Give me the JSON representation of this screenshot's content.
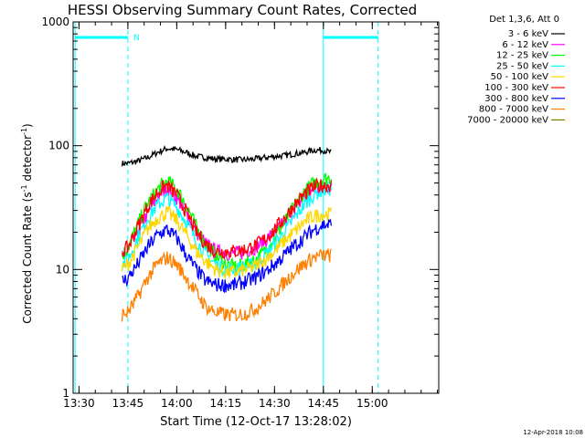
{
  "chart_data": {
    "type": "line",
    "title": "HESSI Observing Summary Count Rates, Corrected",
    "xlabel": "Start Time (12-Oct-17 13:28:02)",
    "ylabel_main": "Corrected Count Rate (s",
    "ylabel_sup1": "-1",
    "ylabel_mid": " detector",
    "ylabel_sup2": "-1",
    "ylabel_end": ")",
    "yscale": "log",
    "ylim": [
      1,
      1000
    ],
    "xlim_minutes": [
      13.47,
      15.34
    ],
    "x_unit": "time of day (hours, decimal)",
    "xtick_labels": [
      "13:30",
      "13:45",
      "14:00",
      "14:15",
      "14:30",
      "14:45",
      "15:00"
    ],
    "xtick_values": [
      13.5,
      13.75,
      14.0,
      14.25,
      14.5,
      14.75,
      15.0
    ],
    "ytick_labels": [
      "1",
      "10",
      "100",
      "1000"
    ],
    "ytick_values": [
      1,
      10,
      100,
      1000
    ],
    "legend_header": "Det 1,3,6, Att 0",
    "legend_location": "right of plot, top",
    "series": [
      {
        "name": "3 - 6 keV",
        "color": "#000000",
        "x": [
          13.72,
          13.75,
          13.8,
          13.85,
          13.9,
          13.95,
          14.0,
          14.05,
          14.1,
          14.15,
          14.2,
          14.25,
          14.3,
          14.35,
          14.4,
          14.45,
          14.5,
          14.55,
          14.6,
          14.65,
          14.7,
          14.75,
          14.79
        ],
        "y": [
          72,
          72,
          75,
          80,
          88,
          95,
          93,
          88,
          82,
          80,
          78,
          78,
          77,
          77,
          78,
          80,
          82,
          83,
          86,
          88,
          92,
          92,
          88
        ]
      },
      {
        "name": "6 - 12 keV",
        "color": "#ff00ff",
        "x": [
          13.72,
          13.75,
          13.8,
          13.85,
          13.9,
          13.95,
          14.0,
          14.05,
          14.1,
          14.15,
          14.2,
          14.25,
          14.3,
          14.35,
          14.4,
          14.45,
          14.5,
          14.55,
          14.6,
          14.65,
          14.7,
          14.75,
          14.79
        ],
        "y": [
          13,
          14,
          20,
          28,
          38,
          46,
          38,
          28,
          20,
          16,
          14,
          13.5,
          13.5,
          14,
          15,
          17,
          20,
          24,
          30,
          38,
          44,
          47,
          48
        ]
      },
      {
        "name": "12 - 25 keV",
        "color": "#00ff00",
        "x": [
          13.72,
          13.75,
          13.8,
          13.85,
          13.9,
          13.95,
          14.0,
          14.05,
          14.1,
          14.15,
          14.2,
          14.25,
          14.3,
          14.35,
          14.4,
          14.45,
          14.5,
          14.55,
          14.6,
          14.65,
          14.7,
          14.75,
          14.79
        ],
        "y": [
          13,
          15,
          23,
          34,
          44,
          52,
          45,
          33,
          22,
          16,
          13,
          11,
          10.5,
          11,
          12,
          14,
          18,
          24,
          32,
          42,
          50,
          54,
          55
        ]
      },
      {
        "name": "25 - 50 keV",
        "color": "#00ffff",
        "x": [
          13.72,
          13.75,
          13.8,
          13.85,
          13.9,
          13.95,
          14.0,
          14.05,
          14.1,
          14.15,
          14.2,
          14.25,
          14.3,
          14.35,
          14.4,
          14.45,
          14.5,
          14.55,
          14.6,
          14.65,
          14.7,
          14.75,
          14.79
        ],
        "y": [
          11,
          12,
          18,
          26,
          33,
          38,
          32,
          24,
          17,
          13,
          11,
          10,
          10,
          10.5,
          11,
          13,
          16,
          20,
          26,
          33,
          40,
          44,
          45
        ]
      },
      {
        "name": "50 - 100 keV",
        "color": "#ffd700",
        "x": [
          13.72,
          13.75,
          13.8,
          13.85,
          13.9,
          13.95,
          14.0,
          14.05,
          14.1,
          14.15,
          14.2,
          14.25,
          14.3,
          14.35,
          14.4,
          14.45,
          14.5,
          14.55,
          14.6,
          14.65,
          14.7,
          14.75,
          14.79
        ],
        "y": [
          10,
          11,
          15,
          21,
          26,
          29,
          25,
          19,
          14,
          11.5,
          10,
          9.5,
          9.5,
          10,
          10.5,
          12,
          14,
          17,
          20,
          24,
          27,
          28,
          28
        ]
      },
      {
        "name": "100 - 300 keV",
        "color": "#ff0000",
        "x": [
          13.72,
          13.75,
          13.8,
          13.85,
          13.9,
          13.95,
          14.0,
          14.05,
          14.1,
          14.15,
          14.2,
          14.25,
          14.3,
          14.35,
          14.4,
          14.45,
          14.5,
          14.55,
          14.6,
          14.65,
          14.7,
          14.75,
          14.79
        ],
        "y": [
          14,
          15,
          22,
          32,
          42,
          48,
          40,
          29,
          20,
          16,
          14,
          14,
          14,
          14.5,
          15.5,
          17.5,
          21,
          26,
          33,
          40,
          46,
          48,
          48
        ]
      },
      {
        "name": "300 - 800 keV",
        "color": "#0000ff",
        "x": [
          13.72,
          13.75,
          13.8,
          13.85,
          13.9,
          13.95,
          14.0,
          14.05,
          14.1,
          14.15,
          14.2,
          14.25,
          14.3,
          14.35,
          14.4,
          14.45,
          14.5,
          14.55,
          14.6,
          14.65,
          14.7,
          14.75,
          14.79
        ],
        "y": [
          8,
          8.5,
          11,
          15,
          19,
          21,
          18,
          13,
          10,
          8,
          7.5,
          7.5,
          7.5,
          8,
          8.5,
          9.5,
          11,
          13,
          15.5,
          18,
          21,
          23,
          23
        ]
      },
      {
        "name": "800 - 7000 keV",
        "color": "#ff8000",
        "x": [
          13.72,
          13.75,
          13.8,
          13.85,
          13.9,
          13.95,
          14.0,
          14.05,
          14.1,
          14.15,
          14.2,
          14.25,
          14.3,
          14.35,
          14.4,
          14.45,
          14.5,
          14.55,
          14.6,
          14.65,
          14.7,
          14.75,
          14.79
        ],
        "y": [
          4.3,
          4.5,
          6,
          8.5,
          11,
          12.5,
          11,
          8.5,
          6.5,
          5,
          4.5,
          4.3,
          4.3,
          4.4,
          4.8,
          5.5,
          6.5,
          7.8,
          9.5,
          11,
          12.5,
          13,
          13
        ]
      },
      {
        "name": "7000 - 20000 keV",
        "color": "#808000",
        "x": [],
        "y": []
      }
    ],
    "annotations": {
      "marker_label": "N",
      "marker_color": "#00ffff",
      "night_bars": [
        [
          13.48,
          13.75
        ],
        [
          14.75,
          15.03
        ]
      ],
      "vertical_solid_lines": [
        13.48,
        14.75
      ],
      "vertical_dashed_lines": [
        13.75,
        15.03
      ]
    },
    "grid": false
  },
  "footer": {
    "date_stamp": "12-Apr-2018 10:08"
  }
}
